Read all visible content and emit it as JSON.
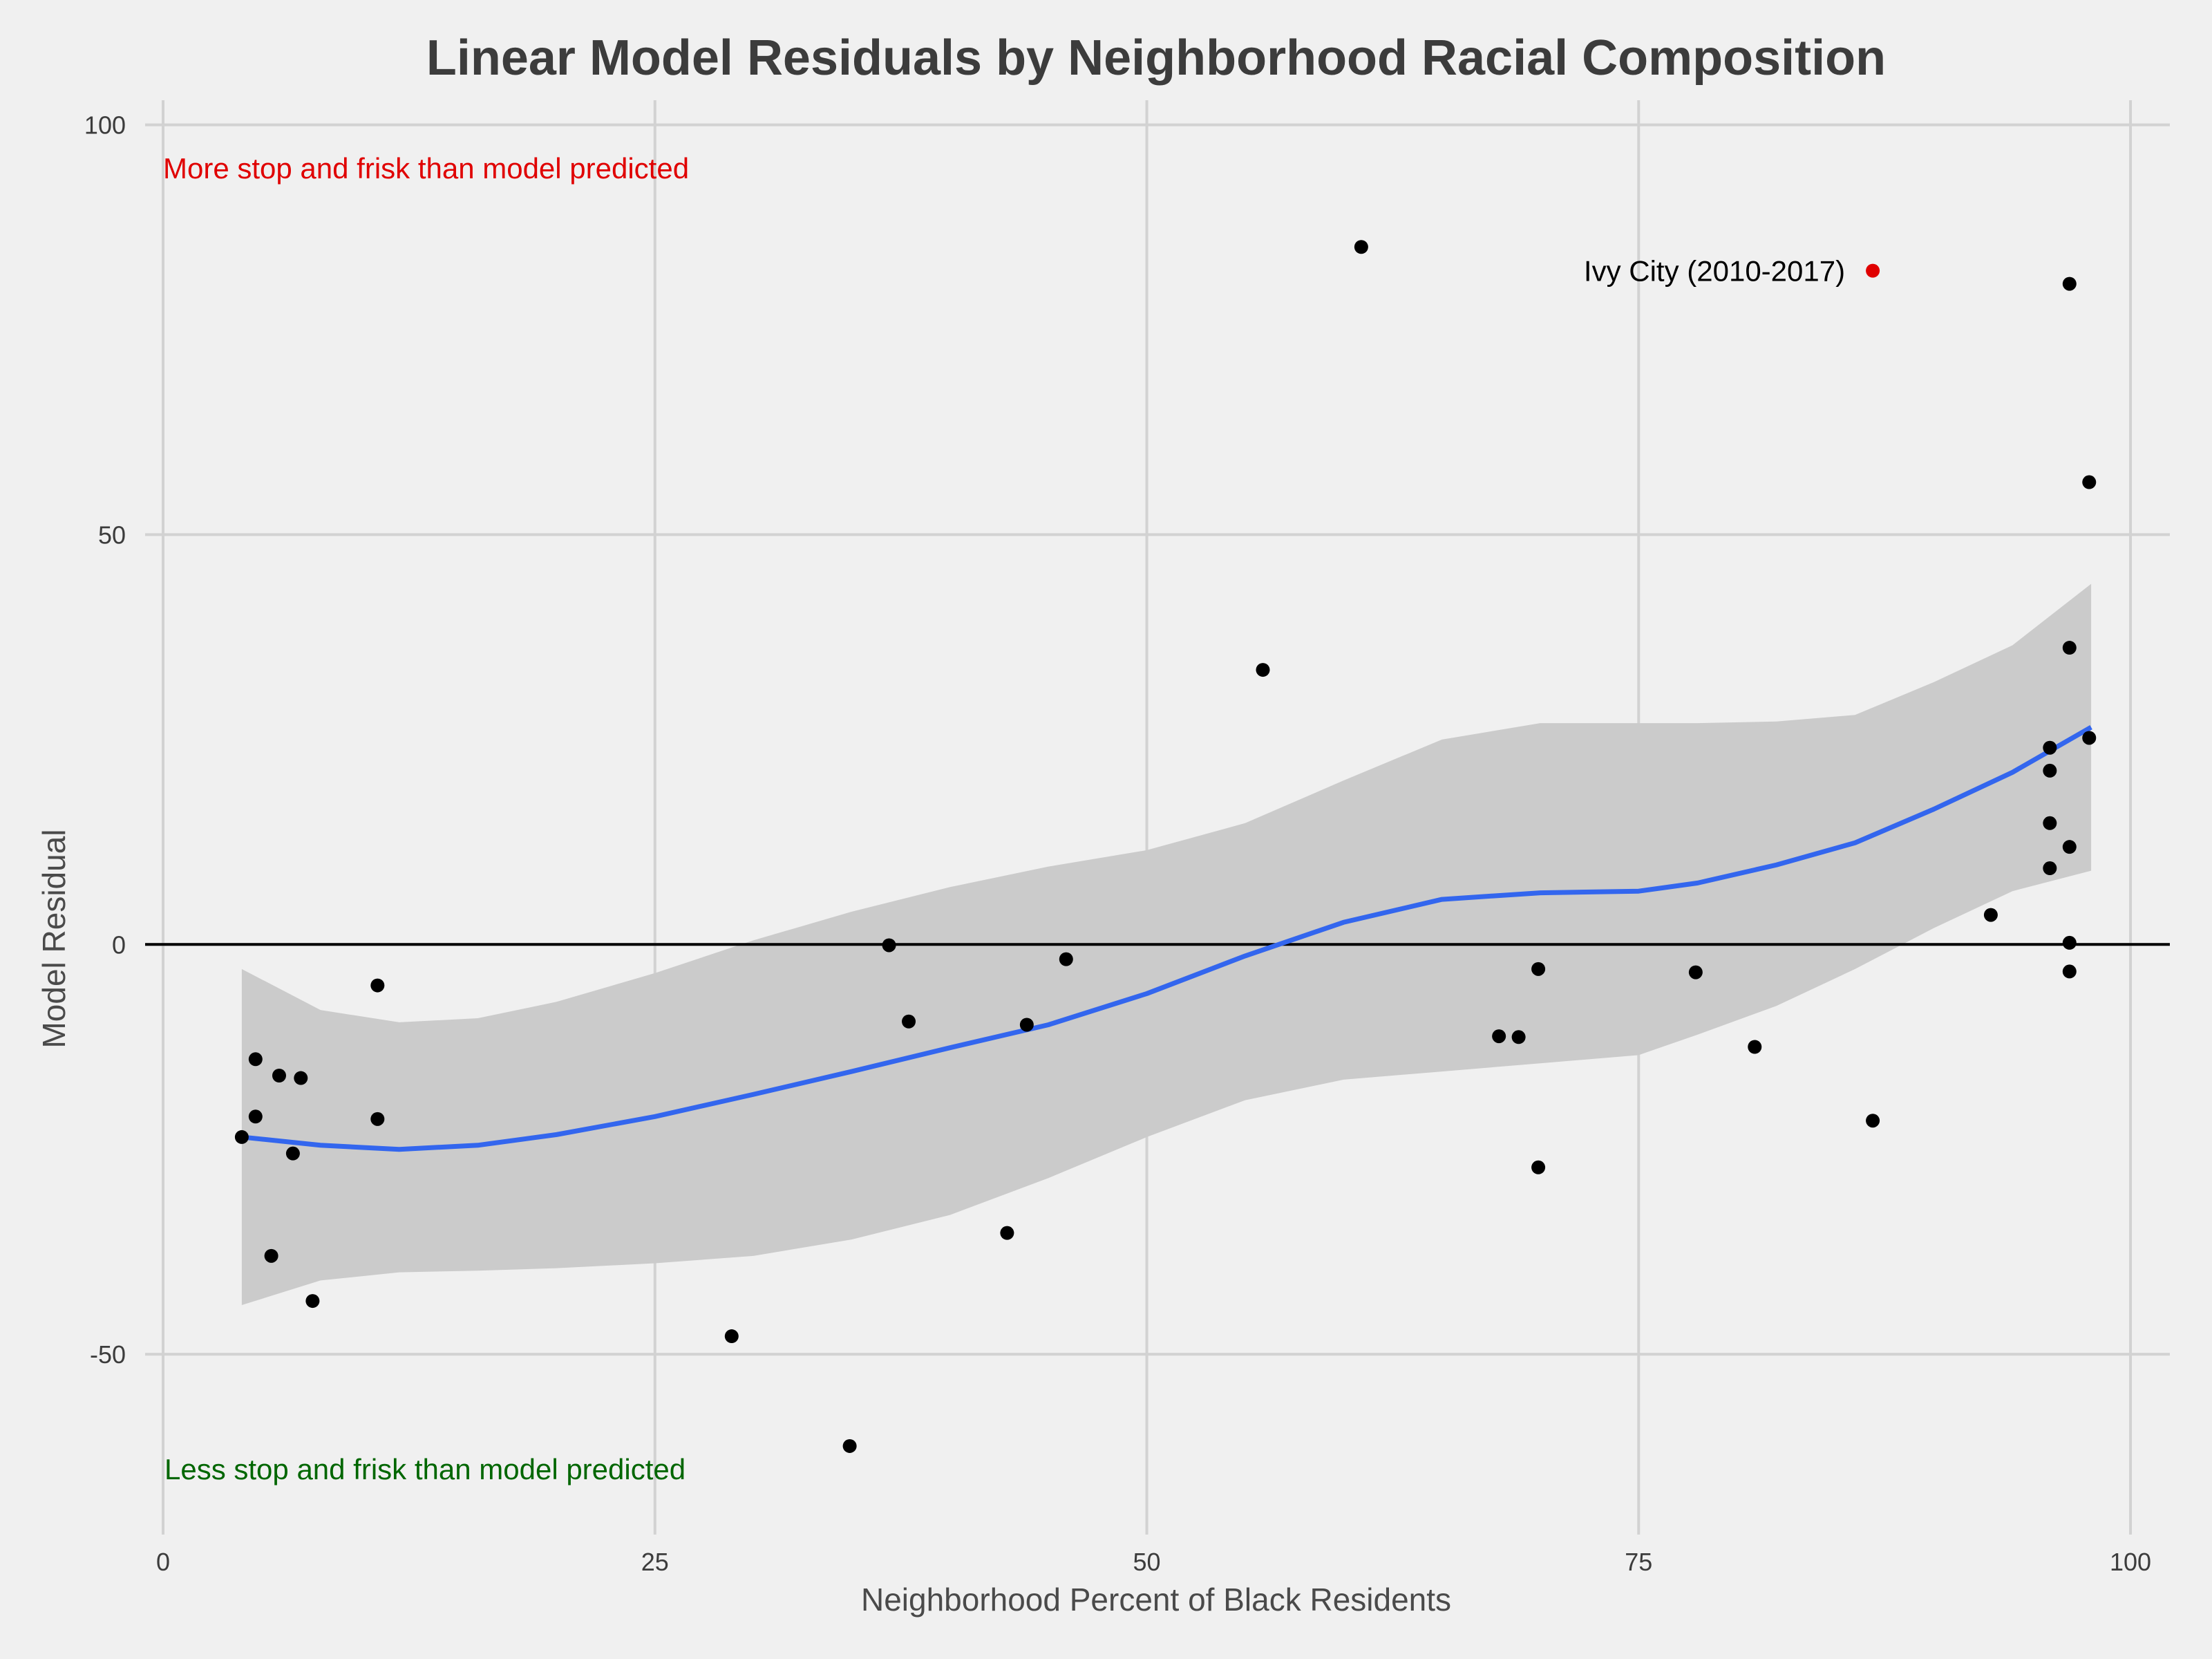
{
  "chart_data": {
    "type": "scatter",
    "title": "Linear Model Residuals by Neighborhood Racial Composition",
    "xlabel": "Neighborhood Percent of Black Residents",
    "ylabel": "Model Residual",
    "xlim": [
      0,
      102
    ],
    "ylim": [
      -72,
      103
    ],
    "x_ticks": [
      0,
      25,
      50,
      75,
      100
    ],
    "y_ticks": [
      -50,
      0,
      50,
      100
    ],
    "x_tick_labels": [
      "0",
      "25",
      "50",
      "75",
      "100"
    ],
    "y_tick_labels": [
      "-50",
      "0",
      "50",
      "100"
    ],
    "grid": true,
    "reference_line_y": 0,
    "colors": {
      "background": "#f0f0f0",
      "points": "#000000",
      "highlight": "#e00000",
      "smooth": "#3366ee",
      "band": "#cbcbcb",
      "annotation_top": "#e00000",
      "annotation_bottom": "#006600",
      "grid": "#d2d2d2"
    },
    "points": [
      {
        "x": 4,
        "y": -23.5
      },
      {
        "x": 4.7,
        "y": -14
      },
      {
        "x": 4.7,
        "y": -21
      },
      {
        "x": 5.5,
        "y": -38
      },
      {
        "x": 5.9,
        "y": -16
      },
      {
        "x": 6.6,
        "y": -25.5
      },
      {
        "x": 7,
        "y": -16.3
      },
      {
        "x": 7.6,
        "y": -43.5
      },
      {
        "x": 10.9,
        "y": -5
      },
      {
        "x": 10.9,
        "y": -21.3
      },
      {
        "x": 28.9,
        "y": -47.8
      },
      {
        "x": 34.9,
        "y": -61.2
      },
      {
        "x": 36.9,
        "y": -0.1
      },
      {
        "x": 37.9,
        "y": -9.4
      },
      {
        "x": 42.9,
        "y": -35.2
      },
      {
        "x": 43.9,
        "y": -9.8
      },
      {
        "x": 45.9,
        "y": -1.8
      },
      {
        "x": 55.9,
        "y": 33.5
      },
      {
        "x": 60.9,
        "y": 85.1
      },
      {
        "x": 67.9,
        "y": -11.2
      },
      {
        "x": 68.9,
        "y": -11.3
      },
      {
        "x": 69.9,
        "y": -3
      },
      {
        "x": 69.9,
        "y": -27.2
      },
      {
        "x": 77.9,
        "y": -3.4
      },
      {
        "x": 80.9,
        "y": -12.5
      },
      {
        "x": 86.9,
        "y": -21.5
      },
      {
        "x": 92.9,
        "y": 3.6
      },
      {
        "x": 95.9,
        "y": 24
      },
      {
        "x": 95.9,
        "y": 21.2
      },
      {
        "x": 95.9,
        "y": 14.8
      },
      {
        "x": 95.9,
        "y": 9.3
      },
      {
        "x": 96.9,
        "y": 80.6
      },
      {
        "x": 96.9,
        "y": 36.2
      },
      {
        "x": 96.9,
        "y": 11.9
      },
      {
        "x": 96.9,
        "y": 0.2
      },
      {
        "x": 96.9,
        "y": -3.3
      },
      {
        "x": 97.9,
        "y": 56.4
      },
      {
        "x": 97.9,
        "y": 25.2
      }
    ],
    "highlight_point": {
      "x": 86.9,
      "y": 82.2,
      "label": "Ivy City (2010-2017)"
    },
    "smooth_line": {
      "x": [
        4,
        8,
        12,
        16,
        20,
        25,
        30,
        35,
        40,
        45,
        50,
        55,
        60,
        65,
        70,
        75,
        78,
        82,
        86,
        90,
        94,
        98
      ],
      "y": [
        -23.5,
        -24.5,
        -25,
        -24.5,
        -23.2,
        -21,
        -18.3,
        -15.5,
        -12.6,
        -9.8,
        -6,
        -1.4,
        2.7,
        5.5,
        6.3,
        6.5,
        7.5,
        9.7,
        12.4,
        16.5,
        21,
        26.5
      ]
    },
    "confidence_band": {
      "x": [
        4,
        8,
        12,
        16,
        20,
        25,
        30,
        35,
        40,
        45,
        50,
        55,
        60,
        65,
        70,
        75,
        78,
        82,
        86,
        90,
        94,
        98
      ],
      "upper": [
        -3,
        -8,
        -9.5,
        -9,
        -7,
        -3.5,
        0.5,
        4,
        7,
        9.5,
        11.5,
        14.8,
        20,
        25,
        27,
        27,
        27,
        27.2,
        28,
        32,
        36.5,
        44
      ],
      "lower": [
        -44,
        -41,
        -40,
        -39.8,
        -39.5,
        -38.9,
        -38,
        -36,
        -33,
        -28.5,
        -23.5,
        -19,
        -16.5,
        -15.5,
        -14.5,
        -13.5,
        -11,
        -7.5,
        -3,
        2,
        6.5,
        9
      ]
    },
    "annotations": {
      "top": "More stop and frisk than model predicted",
      "bottom": "Less stop and frisk than model predicted"
    }
  }
}
